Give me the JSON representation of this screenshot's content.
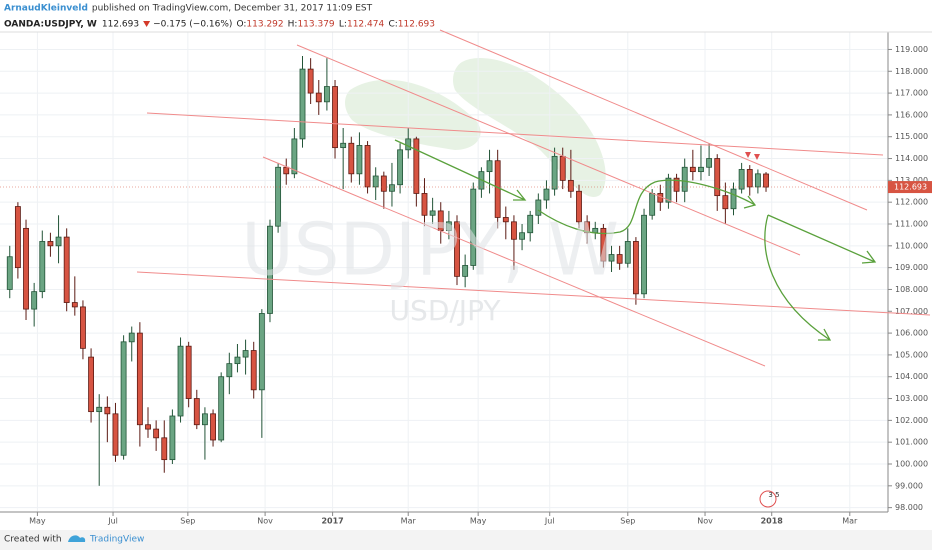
{
  "header": {
    "author": "ArnaudKleinveld",
    "published": "published on TradingView.com, December 31, 2017 11:09 EST",
    "symbol": "OANDA:USDJPY, W",
    "last": "112.693",
    "change": "−0.175 (−0.16%)",
    "ohlc": [
      {
        "label": "O:",
        "value": "113.292"
      },
      {
        "label": "H:",
        "value": "113.379"
      },
      {
        "label": "L:",
        "value": "112.474"
      },
      {
        "label": "C:",
        "value": "112.693"
      }
    ]
  },
  "watermark": {
    "main": "USDJPY, W",
    "sub": "USD/JPY"
  },
  "badge": "3 5",
  "footer": {
    "created": "Created with",
    "brand": "TradingView"
  },
  "chart_data": {
    "type": "candlestick",
    "up_color": "#6ba583",
    "down_color": "#d75442",
    "grid": true,
    "last_price": {
      "value": 112.693,
      "label": "112.693"
    },
    "xlim": [
      -1.2,
      108
    ],
    "xticks": [
      {
        "value": 3.4,
        "label": "May"
      },
      {
        "value": 12.7,
        "label": "Jul"
      },
      {
        "value": 21.9,
        "label": "Sep"
      },
      {
        "value": 31.4,
        "label": "Nov"
      },
      {
        "value": 39.7,
        "label": "2017"
      },
      {
        "value": 49,
        "label": "Mar"
      },
      {
        "value": 57.6,
        "label": "May"
      },
      {
        "value": 66.4,
        "label": "Jul"
      },
      {
        "value": 76,
        "label": "Sep"
      },
      {
        "value": 85.5,
        "label": "Nov"
      },
      {
        "value": 93.7,
        "label": "2018"
      },
      {
        "value": 103.3,
        "label": "Mar"
      }
    ],
    "ylim": [
      97.8,
      119.8
    ],
    "yticks": [
      {
        "value": 98,
        "label": "98.000"
      },
      {
        "value": 99,
        "label": "99.000"
      },
      {
        "value": 100,
        "label": "100.000"
      },
      {
        "value": 101,
        "label": "101.000"
      },
      {
        "value": 102,
        "label": "102.000"
      },
      {
        "value": 103,
        "label": "103.000"
      },
      {
        "value": 104,
        "label": "104.000"
      },
      {
        "value": 105,
        "label": "105.000"
      },
      {
        "value": 106,
        "label": "106.000"
      },
      {
        "value": 107,
        "label": "107.000"
      },
      {
        "value": 108,
        "label": "108.000"
      },
      {
        "value": 109,
        "label": "109.000"
      },
      {
        "value": 110,
        "label": "110.000"
      },
      {
        "value": 111,
        "label": "111.000"
      },
      {
        "value": 112,
        "label": "112.000"
      },
      {
        "value": 113,
        "label": "113.000"
      },
      {
        "value": 114,
        "label": "114.000"
      },
      {
        "value": 115,
        "label": "115.000"
      },
      {
        "value": 116,
        "label": "116.000"
      },
      {
        "value": 117,
        "label": "117.000"
      },
      {
        "value": 118,
        "label": "118.000"
      },
      {
        "value": 119,
        "label": "119.000"
      }
    ],
    "values": [
      {
        "open": 108.0,
        "high": 110.0,
        "low": 107.6,
        "close": 109.5
      },
      {
        "open": 111.8,
        "high": 112.0,
        "low": 108.5,
        "close": 109.0
      },
      {
        "open": 110.8,
        "high": 111.2,
        "low": 106.6,
        "close": 107.1
      },
      {
        "open": 107.1,
        "high": 108.3,
        "low": 106.3,
        "close": 107.9
      },
      {
        "open": 107.9,
        "high": 110.7,
        "low": 107.6,
        "close": 110.2
      },
      {
        "open": 110.2,
        "high": 110.6,
        "low": 109.5,
        "close": 110.0
      },
      {
        "open": 110.0,
        "high": 111.4,
        "low": 109.2,
        "close": 110.4
      },
      {
        "open": 110.4,
        "high": 110.8,
        "low": 107.0,
        "close": 107.4
      },
      {
        "open": 107.4,
        "high": 108.6,
        "low": 106.8,
        "close": 107.2
      },
      {
        "open": 107.2,
        "high": 107.5,
        "low": 104.8,
        "close": 105.3
      },
      {
        "open": 104.9,
        "high": 105.3,
        "low": 101.9,
        "close": 102.4
      },
      {
        "open": 102.4,
        "high": 103.2,
        "low": 99.0,
        "close": 102.6
      },
      {
        "open": 102.6,
        "high": 103.1,
        "low": 101.0,
        "close": 102.3
      },
      {
        "open": 102.3,
        "high": 102.8,
        "low": 100.1,
        "close": 100.4
      },
      {
        "open": 100.4,
        "high": 105.9,
        "low": 100.2,
        "close": 105.6
      },
      {
        "open": 105.6,
        "high": 106.3,
        "low": 104.7,
        "close": 106.0
      },
      {
        "open": 106.0,
        "high": 106.5,
        "low": 100.8,
        "close": 101.8
      },
      {
        "open": 101.8,
        "high": 102.6,
        "low": 101.2,
        "close": 101.6
      },
      {
        "open": 101.6,
        "high": 102.0,
        "low": 100.6,
        "close": 101.2
      },
      {
        "open": 101.2,
        "high": 102.0,
        "low": 99.6,
        "close": 100.2
      },
      {
        "open": 100.2,
        "high": 102.5,
        "low": 100.0,
        "close": 102.2
      },
      {
        "open": 102.2,
        "high": 105.8,
        "low": 101.9,
        "close": 105.4
      },
      {
        "open": 105.4,
        "high": 105.6,
        "low": 102.6,
        "close": 103.0
      },
      {
        "open": 103.0,
        "high": 103.4,
        "low": 101.6,
        "close": 101.8
      },
      {
        "open": 101.8,
        "high": 102.6,
        "low": 100.2,
        "close": 102.3
      },
      {
        "open": 102.3,
        "high": 102.5,
        "low": 100.8,
        "close": 101.1
      },
      {
        "open": 101.1,
        "high": 104.2,
        "low": 101.0,
        "close": 104.0
      },
      {
        "open": 104.0,
        "high": 105.1,
        "low": 103.2,
        "close": 104.6
      },
      {
        "open": 104.6,
        "high": 105.5,
        "low": 104.2,
        "close": 104.9
      },
      {
        "open": 104.9,
        "high": 105.7,
        "low": 104.1,
        "close": 105.2
      },
      {
        "open": 105.2,
        "high": 105.6,
        "low": 103.0,
        "close": 103.4
      },
      {
        "open": 103.4,
        "high": 107.1,
        "low": 101.2,
        "close": 106.9
      },
      {
        "open": 106.9,
        "high": 111.2,
        "low": 106.5,
        "close": 110.9
      },
      {
        "open": 110.9,
        "high": 113.8,
        "low": 110.6,
        "close": 113.6
      },
      {
        "open": 113.6,
        "high": 114.0,
        "low": 112.8,
        "close": 113.3
      },
      {
        "open": 113.3,
        "high": 115.4,
        "low": 113.1,
        "close": 114.9
      },
      {
        "open": 114.9,
        "high": 118.7,
        "low": 114.5,
        "close": 118.1
      },
      {
        "open": 118.1,
        "high": 118.6,
        "low": 116.5,
        "close": 117.0
      },
      {
        "open": 117.0,
        "high": 117.6,
        "low": 116.0,
        "close": 116.6
      },
      {
        "open": 116.6,
        "high": 118.6,
        "low": 116.2,
        "close": 117.3
      },
      {
        "open": 117.3,
        "high": 117.6,
        "low": 114.0,
        "close": 114.5
      },
      {
        "open": 114.5,
        "high": 115.4,
        "low": 112.6,
        "close": 114.7
      },
      {
        "open": 114.7,
        "high": 115.0,
        "low": 112.9,
        "close": 113.3
      },
      {
        "open": 113.3,
        "high": 115.2,
        "low": 112.8,
        "close": 114.6
      },
      {
        "open": 114.6,
        "high": 114.8,
        "low": 112.4,
        "close": 112.7
      },
      {
        "open": 112.7,
        "high": 113.6,
        "low": 112.1,
        "close": 113.2
      },
      {
        "open": 113.2,
        "high": 113.4,
        "low": 111.7,
        "close": 112.5
      },
      {
        "open": 112.5,
        "high": 113.8,
        "low": 111.8,
        "close": 112.8
      },
      {
        "open": 112.8,
        "high": 114.7,
        "low": 112.4,
        "close": 114.4
      },
      {
        "open": 114.4,
        "high": 115.4,
        "low": 114.0,
        "close": 114.9
      },
      {
        "open": 114.9,
        "high": 115.0,
        "low": 111.8,
        "close": 112.4
      },
      {
        "open": 112.4,
        "high": 113.1,
        "low": 110.9,
        "close": 111.4
      },
      {
        "open": 111.4,
        "high": 112.2,
        "low": 111.0,
        "close": 111.6
      },
      {
        "open": 111.6,
        "high": 112.0,
        "low": 110.1,
        "close": 110.7
      },
      {
        "open": 110.7,
        "high": 111.6,
        "low": 110.3,
        "close": 111.1
      },
      {
        "open": 111.1,
        "high": 111.4,
        "low": 108.2,
        "close": 108.6
      },
      {
        "open": 108.6,
        "high": 109.6,
        "low": 108.1,
        "close": 109.1
      },
      {
        "open": 109.1,
        "high": 112.9,
        "low": 108.9,
        "close": 112.6
      },
      {
        "open": 112.6,
        "high": 113.6,
        "low": 112.2,
        "close": 113.4
      },
      {
        "open": 113.4,
        "high": 114.4,
        "low": 112.4,
        "close": 113.9
      },
      {
        "open": 113.9,
        "high": 114.4,
        "low": 110.8,
        "close": 111.3
      },
      {
        "open": 111.3,
        "high": 111.8,
        "low": 110.3,
        "close": 111.1
      },
      {
        "open": 111.1,
        "high": 111.4,
        "low": 108.9,
        "close": 110.3
      },
      {
        "open": 110.3,
        "high": 111.0,
        "low": 109.8,
        "close": 110.6
      },
      {
        "open": 110.6,
        "high": 111.6,
        "low": 110.2,
        "close": 111.4
      },
      {
        "open": 111.4,
        "high": 112.4,
        "low": 111.0,
        "close": 112.1
      },
      {
        "open": 112.1,
        "high": 113.0,
        "low": 111.7,
        "close": 112.6
      },
      {
        "open": 112.6,
        "high": 114.5,
        "low": 112.3,
        "close": 114.1
      },
      {
        "open": 114.1,
        "high": 114.5,
        "low": 112.6,
        "close": 113.0
      },
      {
        "open": 113.0,
        "high": 114.4,
        "low": 112.2,
        "close": 112.5
      },
      {
        "open": 112.5,
        "high": 112.8,
        "low": 110.8,
        "close": 111.1
      },
      {
        "open": 111.1,
        "high": 111.4,
        "low": 110.1,
        "close": 110.6
      },
      {
        "open": 110.6,
        "high": 111.1,
        "low": 110.3,
        "close": 110.8
      },
      {
        "open": 110.8,
        "high": 111.0,
        "low": 109.0,
        "close": 109.3
      },
      {
        "open": 109.3,
        "high": 110.0,
        "low": 108.8,
        "close": 109.6
      },
      {
        "open": 109.6,
        "high": 110.0,
        "low": 108.9,
        "close": 109.2
      },
      {
        "open": 109.2,
        "high": 110.8,
        "low": 109.0,
        "close": 110.2
      },
      {
        "open": 110.2,
        "high": 110.4,
        "low": 107.3,
        "close": 107.8
      },
      {
        "open": 107.8,
        "high": 111.7,
        "low": 107.6,
        "close": 111.4
      },
      {
        "open": 111.4,
        "high": 112.6,
        "low": 111.2,
        "close": 112.4
      },
      {
        "open": 112.4,
        "high": 112.8,
        "low": 111.6,
        "close": 112.0
      },
      {
        "open": 112.0,
        "high": 113.3,
        "low": 111.7,
        "close": 113.1
      },
      {
        "open": 113.1,
        "high": 113.3,
        "low": 112.0,
        "close": 112.5
      },
      {
        "open": 112.5,
        "high": 114.0,
        "low": 112.0,
        "close": 113.6
      },
      {
        "open": 113.6,
        "high": 114.4,
        "low": 113.0,
        "close": 113.4
      },
      {
        "open": 113.4,
        "high": 114.6,
        "low": 113.0,
        "close": 113.6
      },
      {
        "open": 113.6,
        "high": 114.7,
        "low": 113.2,
        "close": 114.0
      },
      {
        "open": 114.0,
        "high": 114.2,
        "low": 111.6,
        "close": 112.3
      },
      {
        "open": 112.3,
        "high": 112.9,
        "low": 111.0,
        "close": 111.7
      },
      {
        "open": 111.7,
        "high": 112.9,
        "low": 111.4,
        "close": 112.6
      },
      {
        "open": 112.6,
        "high": 113.8,
        "low": 112.4,
        "close": 113.5
      },
      {
        "open": 113.5,
        "high": 113.7,
        "low": 112.3,
        "close": 112.7
      },
      {
        "open": 112.7,
        "high": 113.5,
        "low": 112.4,
        "close": 113.3
      },
      {
        "open": 113.292,
        "high": 113.379,
        "low": 112.474,
        "close": 112.693
      }
    ]
  }
}
